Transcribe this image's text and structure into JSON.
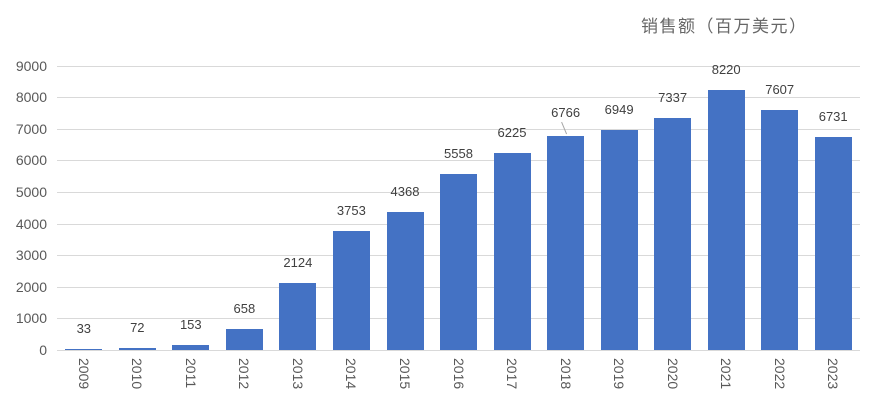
{
  "title": "销售额（百万美元）",
  "colors": {
    "bar": "#4472C4",
    "gridline": "#D9D9D9",
    "axis_text": "#595959",
    "data_label_text": "#404040",
    "title_text": "#666666",
    "leader_line": "#A6A6A6"
  },
  "chart_data": {
    "type": "bar",
    "title": "销售额（百万美元）",
    "categories": [
      "2009",
      "2010",
      "2011",
      "2012",
      "2013",
      "2014",
      "2015",
      "2016",
      "2017",
      "2018",
      "2019",
      "2020",
      "2021",
      "2022",
      "2023"
    ],
    "values": [
      33,
      72,
      153,
      658,
      2124,
      3753,
      4368,
      5558,
      6225,
      6766,
      6949,
      7337,
      8220,
      7607,
      6731
    ],
    "xlabel": "",
    "ylabel": "",
    "ylim": [
      0,
      9000
    ],
    "ytick_step": 1000,
    "ytick_labels": [
      "0",
      "1000",
      "2000",
      "3000",
      "4000",
      "5000",
      "6000",
      "7000",
      "8000",
      "9000"
    ],
    "grid": true,
    "legend": false,
    "data_labels": true,
    "x_labels_rotated_90": true,
    "moved_label": {
      "category": "2018",
      "value": 6766,
      "dy": -3,
      "leader_line": true
    }
  }
}
